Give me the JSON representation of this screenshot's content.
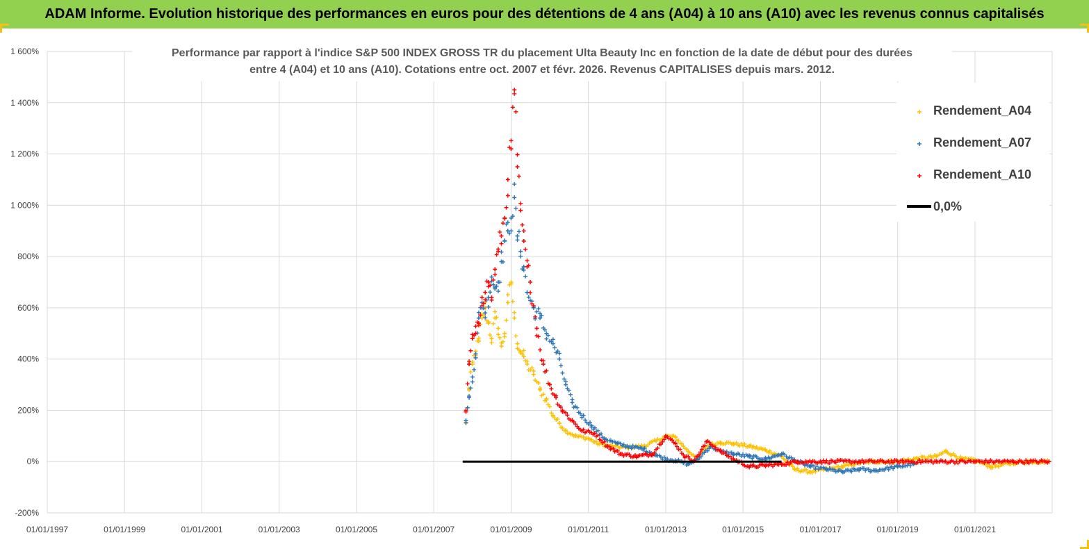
{
  "banner": {
    "title": "ADAM Informe. Evolution historique des performances en euros pour des détentions de 4 ans (A04) à 10 ans (A10) avec les revenus connus capitalisés"
  },
  "colors": {
    "banner_bg": "#92d050",
    "A04": "#ffc000",
    "A07": "#2e75b6",
    "A10": "#ff0000",
    "zero_line": "#000000",
    "grid": "#d9d9d9"
  },
  "chart_data": {
    "type": "scatter",
    "title_lines": [
      "Performance par rapport à l'indice S&P 500 INDEX GROSS TR  du placement Ulta Beauty Inc en fonction de la date de début pour des durées",
      "entre 4 (A04) et 10 ans (A10).  Cotations entre oct. 2007 et févr. 2026. Revenus CAPITALISES  depuis mars. 2012."
    ],
    "xlabel": "",
    "ylabel": "",
    "x_axis": {
      "type": "date",
      "range": [
        "1997-01-01",
        "2022-12-31"
      ],
      "ticks": [
        "01/01/1997",
        "01/01/1999",
        "01/01/2001",
        "01/01/2003",
        "01/01/2005",
        "01/01/2007",
        "01/01/2009",
        "01/01/2011",
        "01/01/2013",
        "01/01/2015",
        "01/01/2017",
        "01/01/2019",
        "01/01/2021"
      ]
    },
    "y_axis": {
      "range": [
        -200,
        1600
      ],
      "unit": "%",
      "ticks": [
        -200,
        0,
        200,
        400,
        600,
        800,
        1000,
        1200,
        1400,
        1600
      ],
      "tick_labels": [
        "-200%",
        "0%",
        "200%",
        "400%",
        "600%",
        "800%",
        "1 000%",
        "1 200%",
        "1 400%",
        "1 600%"
      ]
    },
    "grid": true,
    "legend_position": "top-right",
    "series": [
      {
        "name": "Rendement_A04",
        "color": "#ffc000",
        "marker": "+",
        "points": [
          [
            "2007-11-01",
            150
          ],
          [
            "2007-12-01",
            280
          ],
          [
            "2008-01-01",
            380
          ],
          [
            "2008-02-01",
            430
          ],
          [
            "2008-03-01",
            470
          ],
          [
            "2008-04-01",
            560
          ],
          [
            "2008-05-01",
            600
          ],
          [
            "2008-06-01",
            540
          ],
          [
            "2008-07-01",
            480
          ],
          [
            "2008-08-01",
            560
          ],
          [
            "2008-09-01",
            520
          ],
          [
            "2008-10-01",
            450
          ],
          [
            "2008-11-01",
            500
          ],
          [
            "2008-12-01",
            620
          ],
          [
            "2009-01-01",
            700
          ],
          [
            "2009-02-01",
            560
          ],
          [
            "2009-03-01",
            460
          ],
          [
            "2009-04-01",
            430
          ],
          [
            "2009-05-01",
            410
          ],
          [
            "2009-06-01",
            380
          ],
          [
            "2009-08-01",
            340
          ],
          [
            "2009-10-01",
            280
          ],
          [
            "2009-12-01",
            240
          ],
          [
            "2010-02-01",
            180
          ],
          [
            "2010-04-01",
            150
          ],
          [
            "2010-06-01",
            120
          ],
          [
            "2010-09-01",
            100
          ],
          [
            "2011-01-01",
            90
          ],
          [
            "2011-04-01",
            70
          ],
          [
            "2011-08-01",
            60
          ],
          [
            "2012-01-01",
            55
          ],
          [
            "2012-06-01",
            60
          ],
          [
            "2012-10-01",
            80
          ],
          [
            "2013-01-01",
            100
          ],
          [
            "2013-04-01",
            95
          ],
          [
            "2013-08-01",
            40
          ],
          [
            "2013-11-01",
            15
          ],
          [
            "2014-02-01",
            60
          ],
          [
            "2014-06-01",
            75
          ],
          [
            "2014-10-01",
            70
          ],
          [
            "2015-03-01",
            60
          ],
          [
            "2015-08-01",
            45
          ],
          [
            "2016-01-01",
            20
          ],
          [
            "2016-05-01",
            -30
          ],
          [
            "2016-10-01",
            -40
          ],
          [
            "2017-03-01",
            -30
          ],
          [
            "2017-08-01",
            -20
          ],
          [
            "2018-01-01",
            -5
          ],
          [
            "2018-06-01",
            0
          ],
          [
            "2019-01-01",
            0
          ],
          [
            "2019-06-01",
            10
          ],
          [
            "2020-01-01",
            20
          ],
          [
            "2020-04-01",
            40
          ],
          [
            "2020-09-01",
            10
          ],
          [
            "2021-01-01",
            5
          ],
          [
            "2021-06-01",
            -20
          ],
          [
            "2022-01-01",
            -5
          ],
          [
            "2022-06-01",
            0
          ],
          [
            "2022-12-01",
            0
          ]
        ]
      },
      {
        "name": "Rendement_A07",
        "color": "#2e75b6",
        "marker": "+",
        "points": [
          [
            "2007-11-01",
            160
          ],
          [
            "2007-12-01",
            250
          ],
          [
            "2008-01-01",
            330
          ],
          [
            "2008-02-01",
            420
          ],
          [
            "2008-03-01",
            560
          ],
          [
            "2008-04-01",
            620
          ],
          [
            "2008-05-01",
            580
          ],
          [
            "2008-06-01",
            640
          ],
          [
            "2008-07-01",
            720
          ],
          [
            "2008-08-01",
            680
          ],
          [
            "2008-09-01",
            700
          ],
          [
            "2008-10-01",
            780
          ],
          [
            "2008-11-01",
            860
          ],
          [
            "2008-12-01",
            900
          ],
          [
            "2009-01-01",
            950
          ],
          [
            "2009-02-01",
            1030
          ],
          [
            "2009-03-01",
            880
          ],
          [
            "2009-04-01",
            820
          ],
          [
            "2009-05-01",
            760
          ],
          [
            "2009-06-01",
            660
          ],
          [
            "2009-08-01",
            600
          ],
          [
            "2009-10-01",
            560
          ],
          [
            "2009-12-01",
            500
          ],
          [
            "2010-02-01",
            460
          ],
          [
            "2010-04-01",
            400
          ],
          [
            "2010-06-01",
            300
          ],
          [
            "2010-08-01",
            230
          ],
          [
            "2010-11-01",
            180
          ],
          [
            "2011-02-01",
            140
          ],
          [
            "2011-06-01",
            90
          ],
          [
            "2011-10-01",
            70
          ],
          [
            "2012-01-01",
            60
          ],
          [
            "2012-06-01",
            50
          ],
          [
            "2012-10-01",
            25
          ],
          [
            "2013-01-01",
            10
          ],
          [
            "2013-04-01",
            5
          ],
          [
            "2013-08-01",
            -10
          ],
          [
            "2013-11-01",
            10
          ],
          [
            "2014-03-01",
            60
          ],
          [
            "2014-06-01",
            40
          ],
          [
            "2014-10-01",
            30
          ],
          [
            "2015-03-01",
            20
          ],
          [
            "2015-08-01",
            10
          ],
          [
            "2016-01-01",
            30
          ],
          [
            "2016-05-01",
            5
          ],
          [
            "2016-10-01",
            -20
          ],
          [
            "2017-03-01",
            -30
          ],
          [
            "2017-08-01",
            -40
          ],
          [
            "2018-01-01",
            -30
          ],
          [
            "2018-06-01",
            -35
          ],
          [
            "2019-01-01",
            -20
          ],
          [
            "2019-06-01",
            -10
          ]
        ]
      },
      {
        "name": "Rendement_A10",
        "color": "#ff0000",
        "marker": "+",
        "points": [
          [
            "2007-11-01",
            200
          ],
          [
            "2007-12-01",
            380
          ],
          [
            "2008-01-01",
            480
          ],
          [
            "2008-02-01",
            500
          ],
          [
            "2008-03-01",
            540
          ],
          [
            "2008-04-01",
            640
          ],
          [
            "2008-05-01",
            660
          ],
          [
            "2008-06-01",
            700
          ],
          [
            "2008-07-01",
            640
          ],
          [
            "2008-08-01",
            750
          ],
          [
            "2008-09-01",
            820
          ],
          [
            "2008-10-01",
            880
          ],
          [
            "2008-11-01",
            950
          ],
          [
            "2008-12-01",
            1100
          ],
          [
            "2009-01-01",
            1220
          ],
          [
            "2009-02-01",
            1450
          ],
          [
            "2009-03-01",
            1150
          ],
          [
            "2009-04-01",
            980
          ],
          [
            "2009-05-01",
            860
          ],
          [
            "2009-06-01",
            760
          ],
          [
            "2009-07-01",
            700
          ],
          [
            "2009-09-01",
            520
          ],
          [
            "2009-11-01",
            380
          ],
          [
            "2010-01-01",
            300
          ],
          [
            "2010-03-01",
            250
          ],
          [
            "2010-05-01",
            200
          ],
          [
            "2010-08-01",
            160
          ],
          [
            "2010-11-01",
            120
          ],
          [
            "2011-03-01",
            110
          ],
          [
            "2011-07-01",
            60
          ],
          [
            "2011-11-01",
            30
          ],
          [
            "2012-04-01",
            20
          ],
          [
            "2012-09-01",
            30
          ],
          [
            "2013-01-01",
            100
          ],
          [
            "2013-04-01",
            70
          ],
          [
            "2013-07-01",
            20
          ],
          [
            "2013-10-01",
            5
          ],
          [
            "2014-02-01",
            80
          ],
          [
            "2014-06-01",
            40
          ],
          [
            "2014-10-01",
            10
          ],
          [
            "2015-03-01",
            -20
          ],
          [
            "2015-08-01",
            -15
          ],
          [
            "2016-01-01",
            -10
          ],
          [
            "2016-06-01",
            0
          ],
          [
            "2017-01-01",
            0
          ],
          [
            "2018-01-01",
            0
          ],
          [
            "2019-01-01",
            0
          ],
          [
            "2020-01-01",
            0
          ],
          [
            "2021-01-01",
            0
          ],
          [
            "2022-01-01",
            0
          ],
          [
            "2022-12-01",
            0
          ]
        ]
      },
      {
        "name": "0,0%",
        "color": "#000000",
        "marker": "line",
        "points": [
          [
            "2007-10-01",
            0
          ],
          [
            "2015-12-31",
            0
          ]
        ]
      }
    ]
  }
}
